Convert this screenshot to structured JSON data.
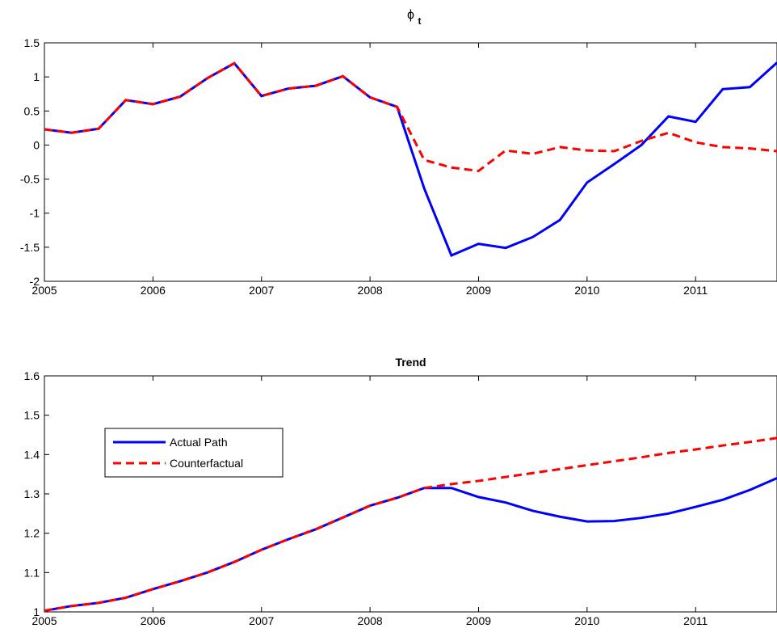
{
  "chart_data": [
    {
      "type": "line",
      "title": "ϕ",
      "title_subscript": "t",
      "x": [
        2005,
        2005.25,
        2005.5,
        2005.75,
        2006,
        2006.25,
        2006.5,
        2006.75,
        2007,
        2007.25,
        2007.5,
        2007.75,
        2008,
        2008.25,
        2008.5,
        2008.75,
        2009,
        2009.25,
        2009.5,
        2009.75,
        2010,
        2010.25,
        2010.5,
        2010.75,
        2011,
        2011.25,
        2011.5,
        2011.75
      ],
      "series": [
        {
          "name": "Actual Path",
          "color": "#0000ff",
          "dash": false,
          "values": [
            0.23,
            0.18,
            0.24,
            0.66,
            0.6,
            0.71,
            0.98,
            1.2,
            0.72,
            0.83,
            0.87,
            1.01,
            0.7,
            0.56,
            -0.64,
            -1.62,
            -1.45,
            -1.51,
            -1.35,
            -1.1,
            -0.55,
            -0.28,
            0,
            0.42,
            0.34,
            0.82,
            0.85,
            1.21
          ]
        },
        {
          "name": "Counterfactual",
          "color": "#ff0000",
          "dash": true,
          "values": [
            0.23,
            0.18,
            0.24,
            0.66,
            0.6,
            0.71,
            0.98,
            1.2,
            0.72,
            0.83,
            0.87,
            1.01,
            0.7,
            0.56,
            -0.22,
            -0.33,
            -0.38,
            -0.08,
            -0.13,
            -0.03,
            -0.08,
            -0.09,
            0.06,
            0.18,
            0.04,
            -0.03,
            -0.05,
            -0.09
          ]
        }
      ],
      "xlim": [
        2005,
        2011.75
      ],
      "xticks": [
        2005,
        2006,
        2007,
        2008,
        2009,
        2010,
        2011
      ],
      "ylim": [
        -2,
        1.5
      ],
      "yticks": [
        -2,
        -1.5,
        -1,
        -0.5,
        0,
        0.5,
        1,
        1.5
      ],
      "legend": false
    },
    {
      "type": "line",
      "title": "Trend",
      "x": [
        2005,
        2005.25,
        2005.5,
        2005.75,
        2006,
        2006.25,
        2006.5,
        2006.75,
        2007,
        2007.25,
        2007.5,
        2007.75,
        2008,
        2008.25,
        2008.5,
        2008.75,
        2009,
        2009.25,
        2009.5,
        2009.75,
        2010,
        2010.25,
        2010.5,
        2010.75,
        2011,
        2011.25,
        2011.5,
        2011.75
      ],
      "series": [
        {
          "name": "Actual Path",
          "color": "#0000ff",
          "dash": false,
          "values": [
            1.003,
            1.015,
            1.023,
            1.036,
            1.058,
            1.078,
            1.1,
            1.127,
            1.158,
            1.185,
            1.21,
            1.24,
            1.27,
            1.29,
            1.315,
            1.315,
            1.292,
            1.278,
            1.257,
            1.242,
            1.23,
            1.231,
            1.239,
            1.25,
            1.267,
            1.285,
            1.31,
            1.34
          ]
        },
        {
          "name": "Counterfactual",
          "color": "#ff0000",
          "dash": true,
          "values": [
            1.003,
            1.015,
            1.023,
            1.036,
            1.058,
            1.078,
            1.1,
            1.127,
            1.158,
            1.185,
            1.21,
            1.24,
            1.27,
            1.29,
            1.315,
            1.325,
            1.333,
            1.343,
            1.353,
            1.363,
            1.373,
            1.383,
            1.393,
            1.404,
            1.413,
            1.423,
            1.432,
            1.442
          ]
        }
      ],
      "xlim": [
        2005,
        2011.75
      ],
      "xticks": [
        2005,
        2006,
        2007,
        2008,
        2009,
        2010,
        2011
      ],
      "ylim": [
        1,
        1.6
      ],
      "yticks": [
        1,
        1.1,
        1.2,
        1.3,
        1.4,
        1.5,
        1.6
      ],
      "legend": "upper left"
    }
  ]
}
